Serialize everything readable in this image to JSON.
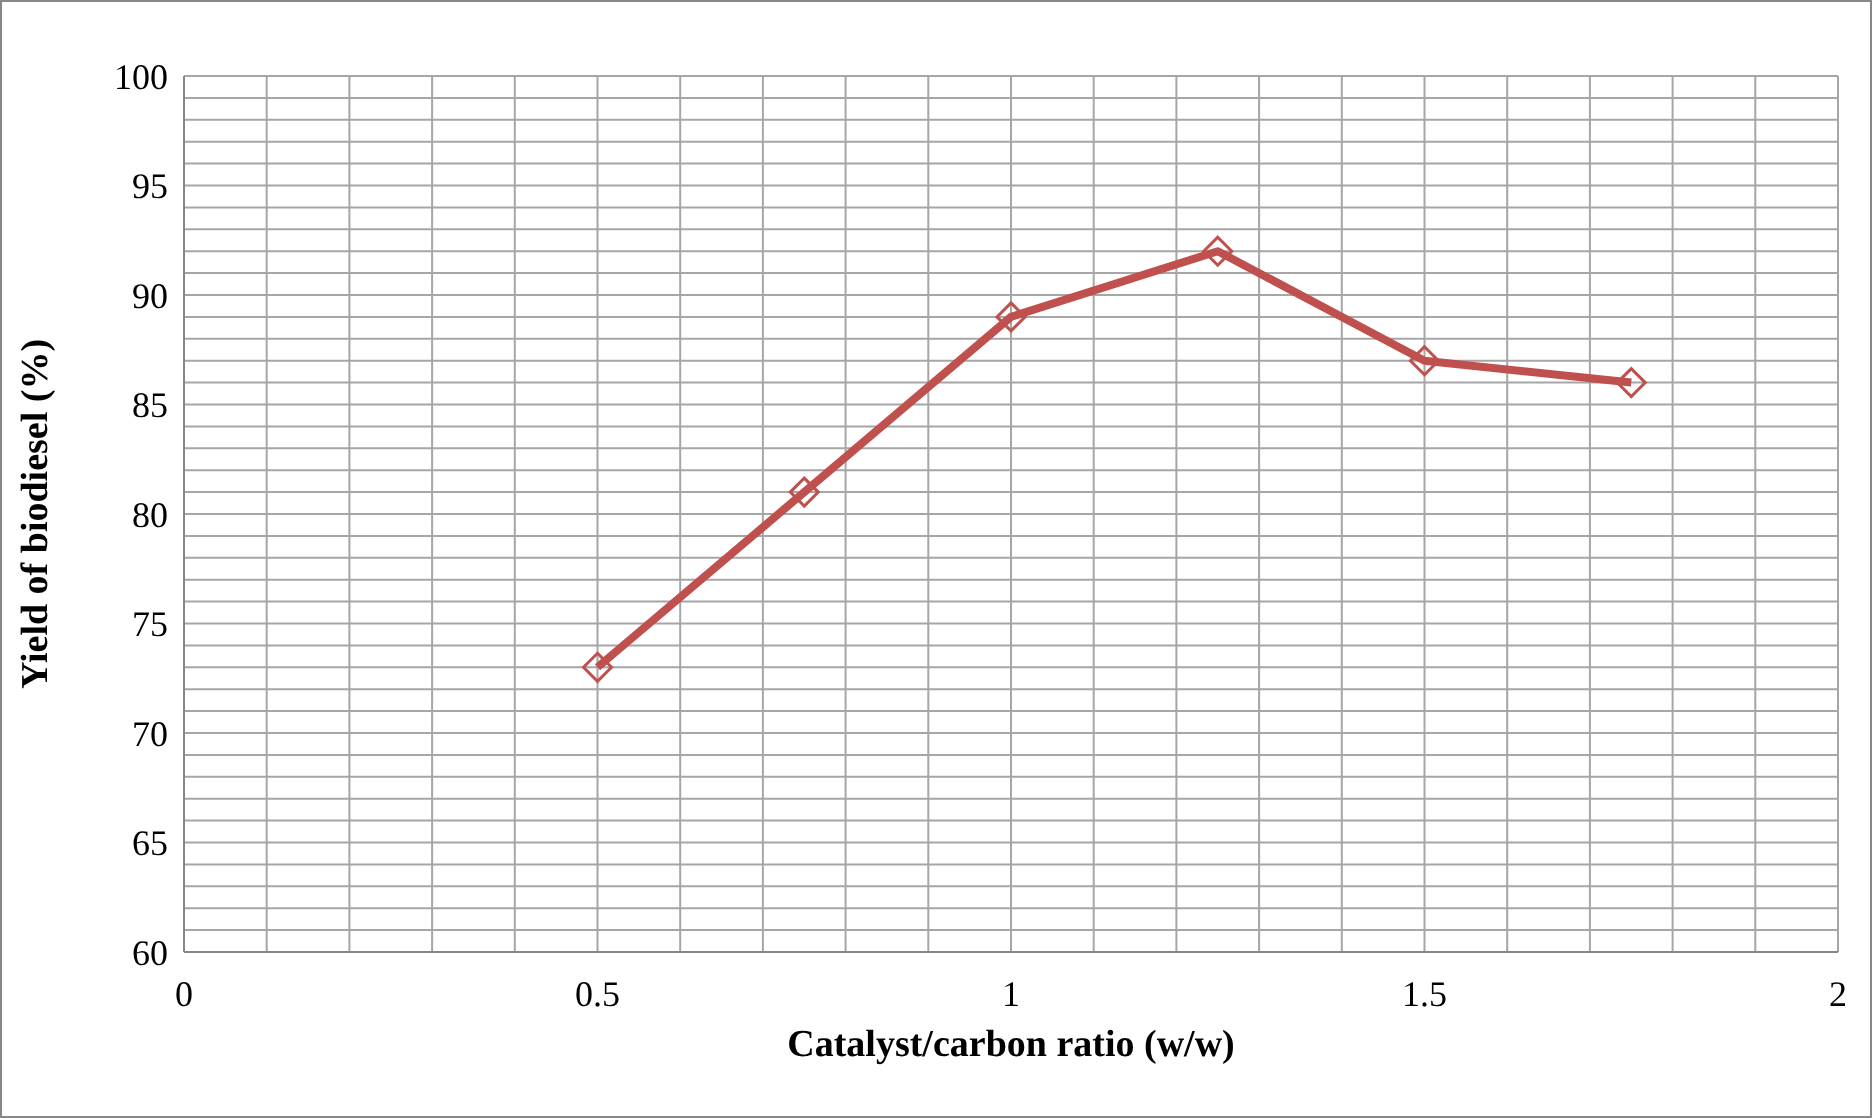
{
  "chart_data": {
    "type": "line",
    "xlabel": "Catalyst/carbon ratio (w/w)",
    "ylabel": "Yield of biodiesel (%)",
    "x": [
      0.5,
      0.75,
      1,
      1.25,
      1.5,
      1.75
    ],
    "series": [
      {
        "color": "#c0504d",
        "values": [
          73,
          81,
          89,
          92,
          87,
          86
        ]
      }
    ],
    "marker": "diamond",
    "line_style": "solid",
    "grid": true,
    "legend": false,
    "xlim": [
      0,
      2
    ],
    "ylim": [
      60,
      100
    ],
    "xticks": [
      0,
      {
        "value": 0.1,
        "label": null
      },
      {
        "value": 0.2,
        "label": null
      },
      {
        "value": 0.3,
        "label": null
      },
      {
        "value": 0.4,
        "label": null
      },
      0.5,
      {
        "value": 0.6,
        "label": null
      },
      {
        "value": 0.7,
        "label": null
      },
      {
        "value": 0.8,
        "label": null
      },
      {
        "value": 0.9,
        "label": null
      },
      1,
      {
        "value": 1.1,
        "label": null
      },
      {
        "value": 1.2,
        "label": null
      },
      {
        "value": 1.3,
        "label": null
      },
      {
        "value": 1.4,
        "label": null
      },
      1.5,
      {
        "value": 1.6,
        "label": null
      },
      {
        "value": 1.7,
        "label": null
      },
      {
        "value": 1.8,
        "label": null
      },
      {
        "value": 1.9,
        "label": null
      },
      2
    ],
    "yticks": [
      60,
      {
        "value": 61,
        "label": null
      },
      {
        "value": 62,
        "label": null
      },
      {
        "value": 63,
        "label": null
      },
      {
        "value": 64,
        "label": null
      },
      65,
      {
        "value": 66,
        "label": null
      },
      {
        "value": 67,
        "label": null
      },
      {
        "value": 68,
        "label": null
      },
      {
        "value": 69,
        "label": null
      },
      70,
      {
        "value": 71,
        "label": null
      },
      {
        "value": 72,
        "label": null
      },
      {
        "value": 73,
        "label": null
      },
      {
        "value": 74,
        "label": null
      },
      75,
      {
        "value": 76,
        "label": null
      },
      {
        "value": 77,
        "label": null
      },
      {
        "value": 78,
        "label": null
      },
      {
        "value": 79,
        "label": null
      },
      80,
      {
        "value": 81,
        "label": null
      },
      {
        "value": 82,
        "label": null
      },
      {
        "value": 83,
        "label": null
      },
      {
        "value": 84,
        "label": null
      },
      85,
      {
        "value": 86,
        "label": null
      },
      {
        "value": 87,
        "label": null
      },
      {
        "value": 88,
        "label": null
      },
      {
        "value": 89,
        "label": null
      },
      90,
      {
        "value": 91,
        "label": null
      },
      {
        "value": 92,
        "label": null
      },
      {
        "value": 93,
        "label": null
      },
      {
        "value": 94,
        "label": null
      },
      95,
      {
        "value": 96,
        "label": null
      },
      {
        "value": 97,
        "label": null
      },
      {
        "value": 98,
        "label": null
      },
      {
        "value": 99,
        "label": null
      },
      100
    ]
  }
}
